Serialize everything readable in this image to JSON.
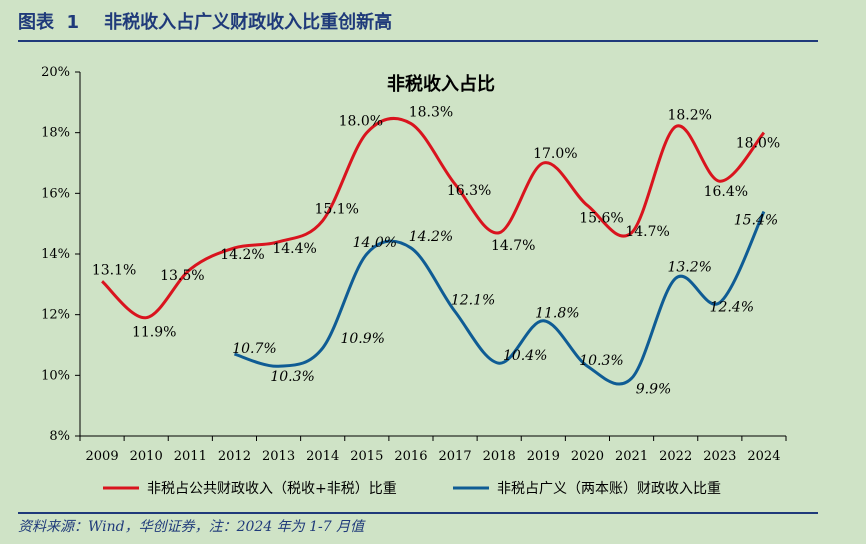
{
  "header": {
    "title": "图表  1    非税收入占广义财政收入比重创新高"
  },
  "footer": {
    "source": "资料来源：Wind，华创证券，注：2024 年为 1-7 月值"
  },
  "colors": {
    "series1": "#d9141e",
    "series2": "#0f5c94",
    "accent": "#1f3a7a"
  },
  "chart_data": {
    "type": "line",
    "title": "非税收入占比",
    "xlabel": "",
    "ylabel": "",
    "x": [
      "2009",
      "2010",
      "2011",
      "2012",
      "2013",
      "2014",
      "2015",
      "2016",
      "2017",
      "2018",
      "2019",
      "2020",
      "2021",
      "2022",
      "2023",
      "2024"
    ],
    "ylim": [
      8,
      20
    ],
    "yticks": [
      8,
      10,
      12,
      14,
      16,
      18,
      20
    ],
    "ytick_labels": [
      "8%",
      "10%",
      "12%",
      "14%",
      "16%",
      "18%",
      "20%"
    ],
    "grid": false,
    "legend_position": "bottom",
    "series": [
      {
        "name": "非税占公共财政收入（税收+非税）比重",
        "values": [
          13.1,
          11.9,
          13.5,
          14.2,
          14.4,
          15.1,
          18.0,
          18.3,
          16.3,
          14.7,
          17.0,
          15.6,
          14.7,
          18.2,
          16.4,
          18.0
        ],
        "labels": [
          "13.1%",
          "11.9%",
          "13.5%",
          "14.2%",
          "14.4%",
          "15.1%",
          "18.0%",
          "18.3%",
          "16.3%",
          "14.7%",
          "17.0%",
          "15.6%",
          "14.7%",
          "18.2%",
          "16.4%",
          "18.0%"
        ]
      },
      {
        "name": "非税占广义（两本账）财政收入比重",
        "values": [
          null,
          null,
          null,
          10.7,
          10.3,
          10.9,
          14.0,
          14.2,
          12.1,
          10.4,
          11.8,
          10.3,
          9.9,
          13.2,
          12.4,
          15.4
        ],
        "labels": [
          "",
          "",
          "",
          "10.7%",
          "10.3%",
          "10.9%",
          "14.0%",
          "14.2%",
          "12.1%",
          "10.4%",
          "11.8%",
          "10.3%",
          "9.9%",
          "13.2%",
          "12.4%",
          "15.4%"
        ]
      }
    ]
  }
}
